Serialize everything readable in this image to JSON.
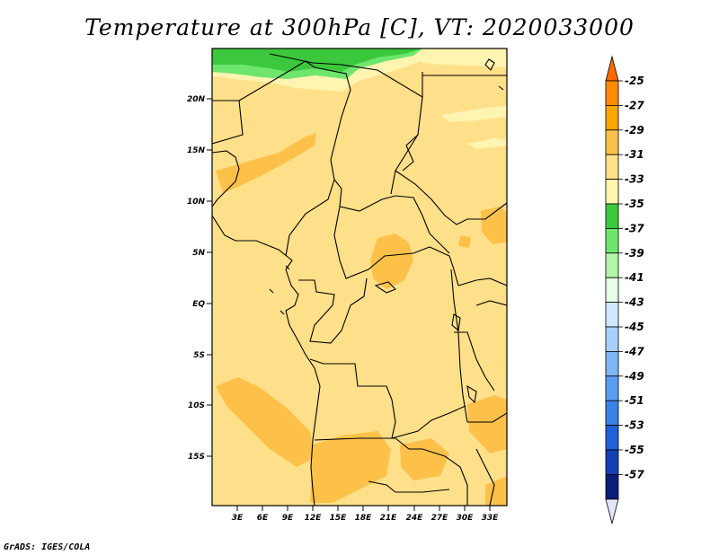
{
  "title": "Temperature at 300hPa [C], VT: 2020033000",
  "credit": "GrADS: IGES/COLA",
  "map": {
    "lat_labels": [
      "20N",
      "15N",
      "10N",
      "5N",
      "EQ",
      "5S",
      "10S",
      "15S"
    ],
    "lon_labels": [
      "3E",
      "6E",
      "9E",
      "12E",
      "15E",
      "18E",
      "21E",
      "24E",
      "27E",
      "30E",
      "33E"
    ]
  },
  "colorbar": {
    "levels": [
      "-25",
      "-27",
      "-29",
      "-31",
      "-33",
      "-35",
      "-37",
      "-39",
      "-41",
      "-43",
      "-45",
      "-47",
      "-49",
      "-51",
      "-53",
      "-55",
      "-57"
    ],
    "colors": [
      "#ff6a00",
      "#ff8c00",
      "#ffa500",
      "#fdc14a",
      "#fee08a",
      "#fff4b0",
      "#3cc83c",
      "#6ee66e",
      "#b4f5a8",
      "#e6ffe6",
      "#d2e8ff",
      "#a8d0fa",
      "#7eb6f5",
      "#5a9ef0",
      "#3a82e8",
      "#2060d8",
      "#1440b4",
      "#0a1e78",
      "#e4e4fa"
    ]
  }
}
